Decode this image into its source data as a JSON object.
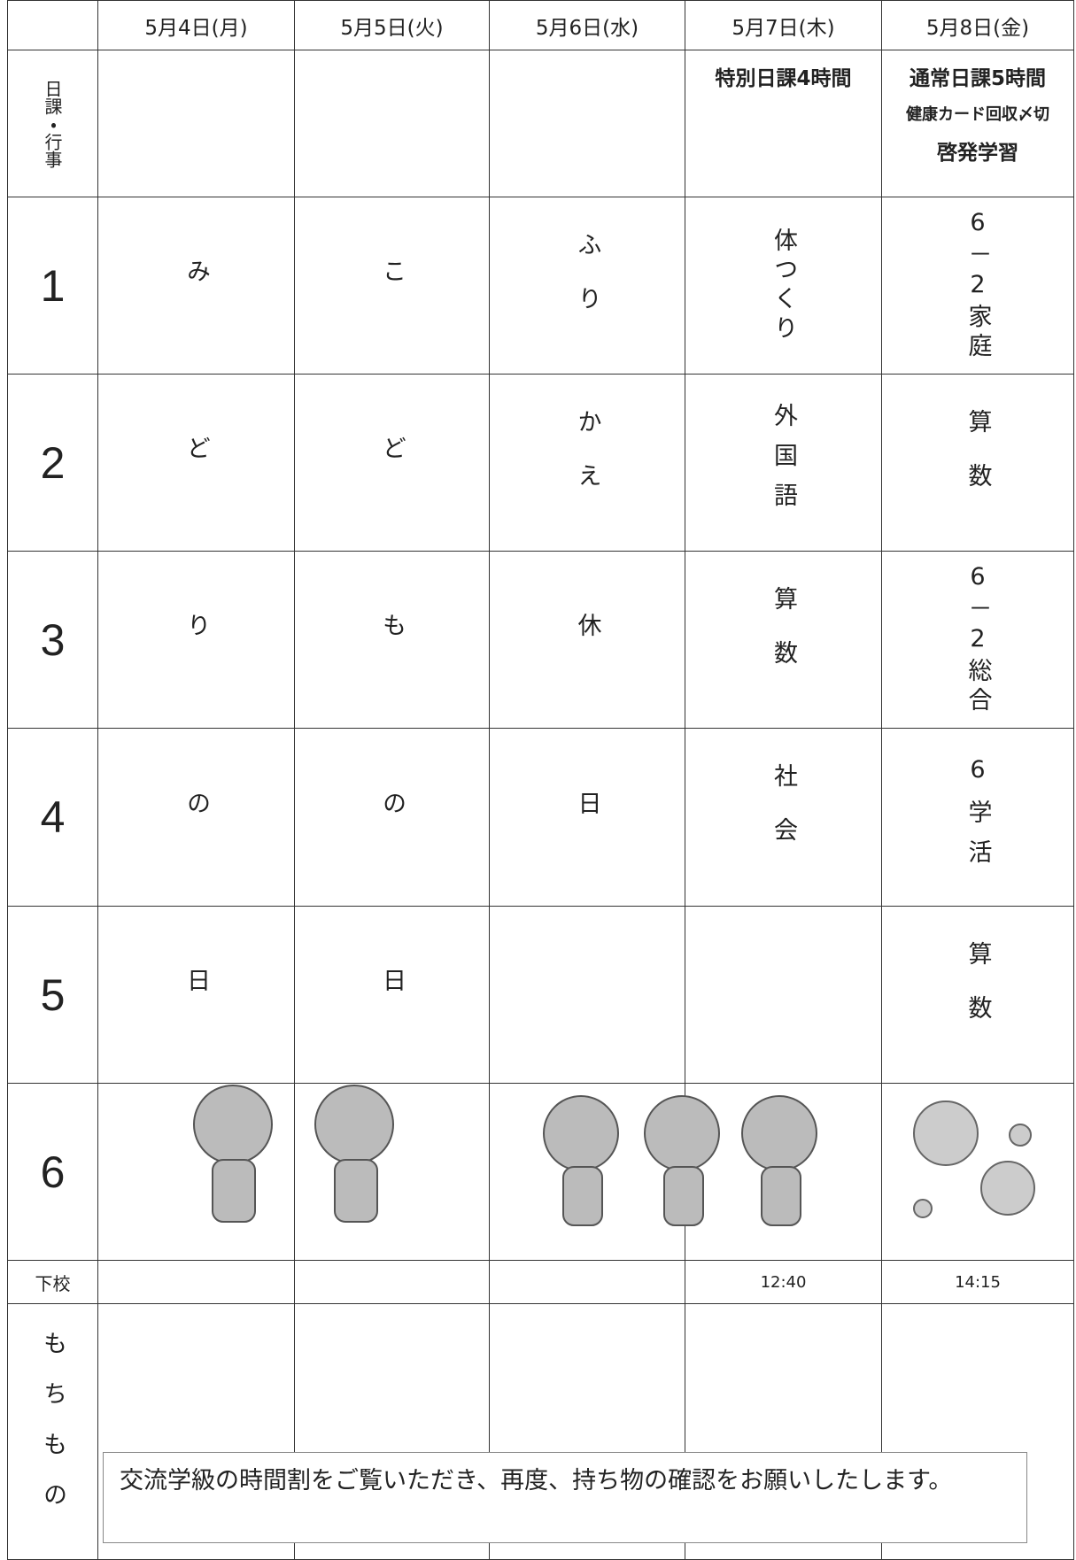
{
  "header": {
    "dates": [
      "5月4日(月)",
      "5月5日(火)",
      "5月6日(水)",
      "5月7日(木)",
      "5月8日(金)"
    ]
  },
  "row_labels": {
    "schedule": "日課・行事",
    "dismissal": "下校",
    "belongings": "もちもの"
  },
  "schedule": [
    null,
    null,
    null,
    [
      "特別日課4時間"
    ],
    [
      "通常日課5時間",
      "健康カード回収〆切",
      "啓発学習"
    ]
  ],
  "periods": [
    {
      "label": "1",
      "cells": [
        "み",
        "こ",
        "ふり",
        "体つくり",
        "6－2家庭"
      ]
    },
    {
      "label": "2",
      "cells": [
        "ど",
        "ど",
        "かえ",
        "外国語",
        "算数"
      ]
    },
    {
      "label": "3",
      "cells": [
        "り",
        "も",
        "休",
        "算数",
        "6－2総合"
      ]
    },
    {
      "label": "4",
      "cells": [
        "の",
        "の",
        "日",
        "社会",
        "6学活"
      ]
    },
    {
      "label": "5",
      "cells": [
        "日",
        "日",
        null,
        null,
        "算数"
      ]
    },
    {
      "label": "6",
      "cells": [
        null,
        null,
        null,
        null,
        null
      ]
    }
  ],
  "dismissal": [
    null,
    null,
    null,
    "12:40",
    "14:15"
  ],
  "note": "交流学級の時間割をご覧いただき、再度、持ち物の確認をお願いしたします。"
}
